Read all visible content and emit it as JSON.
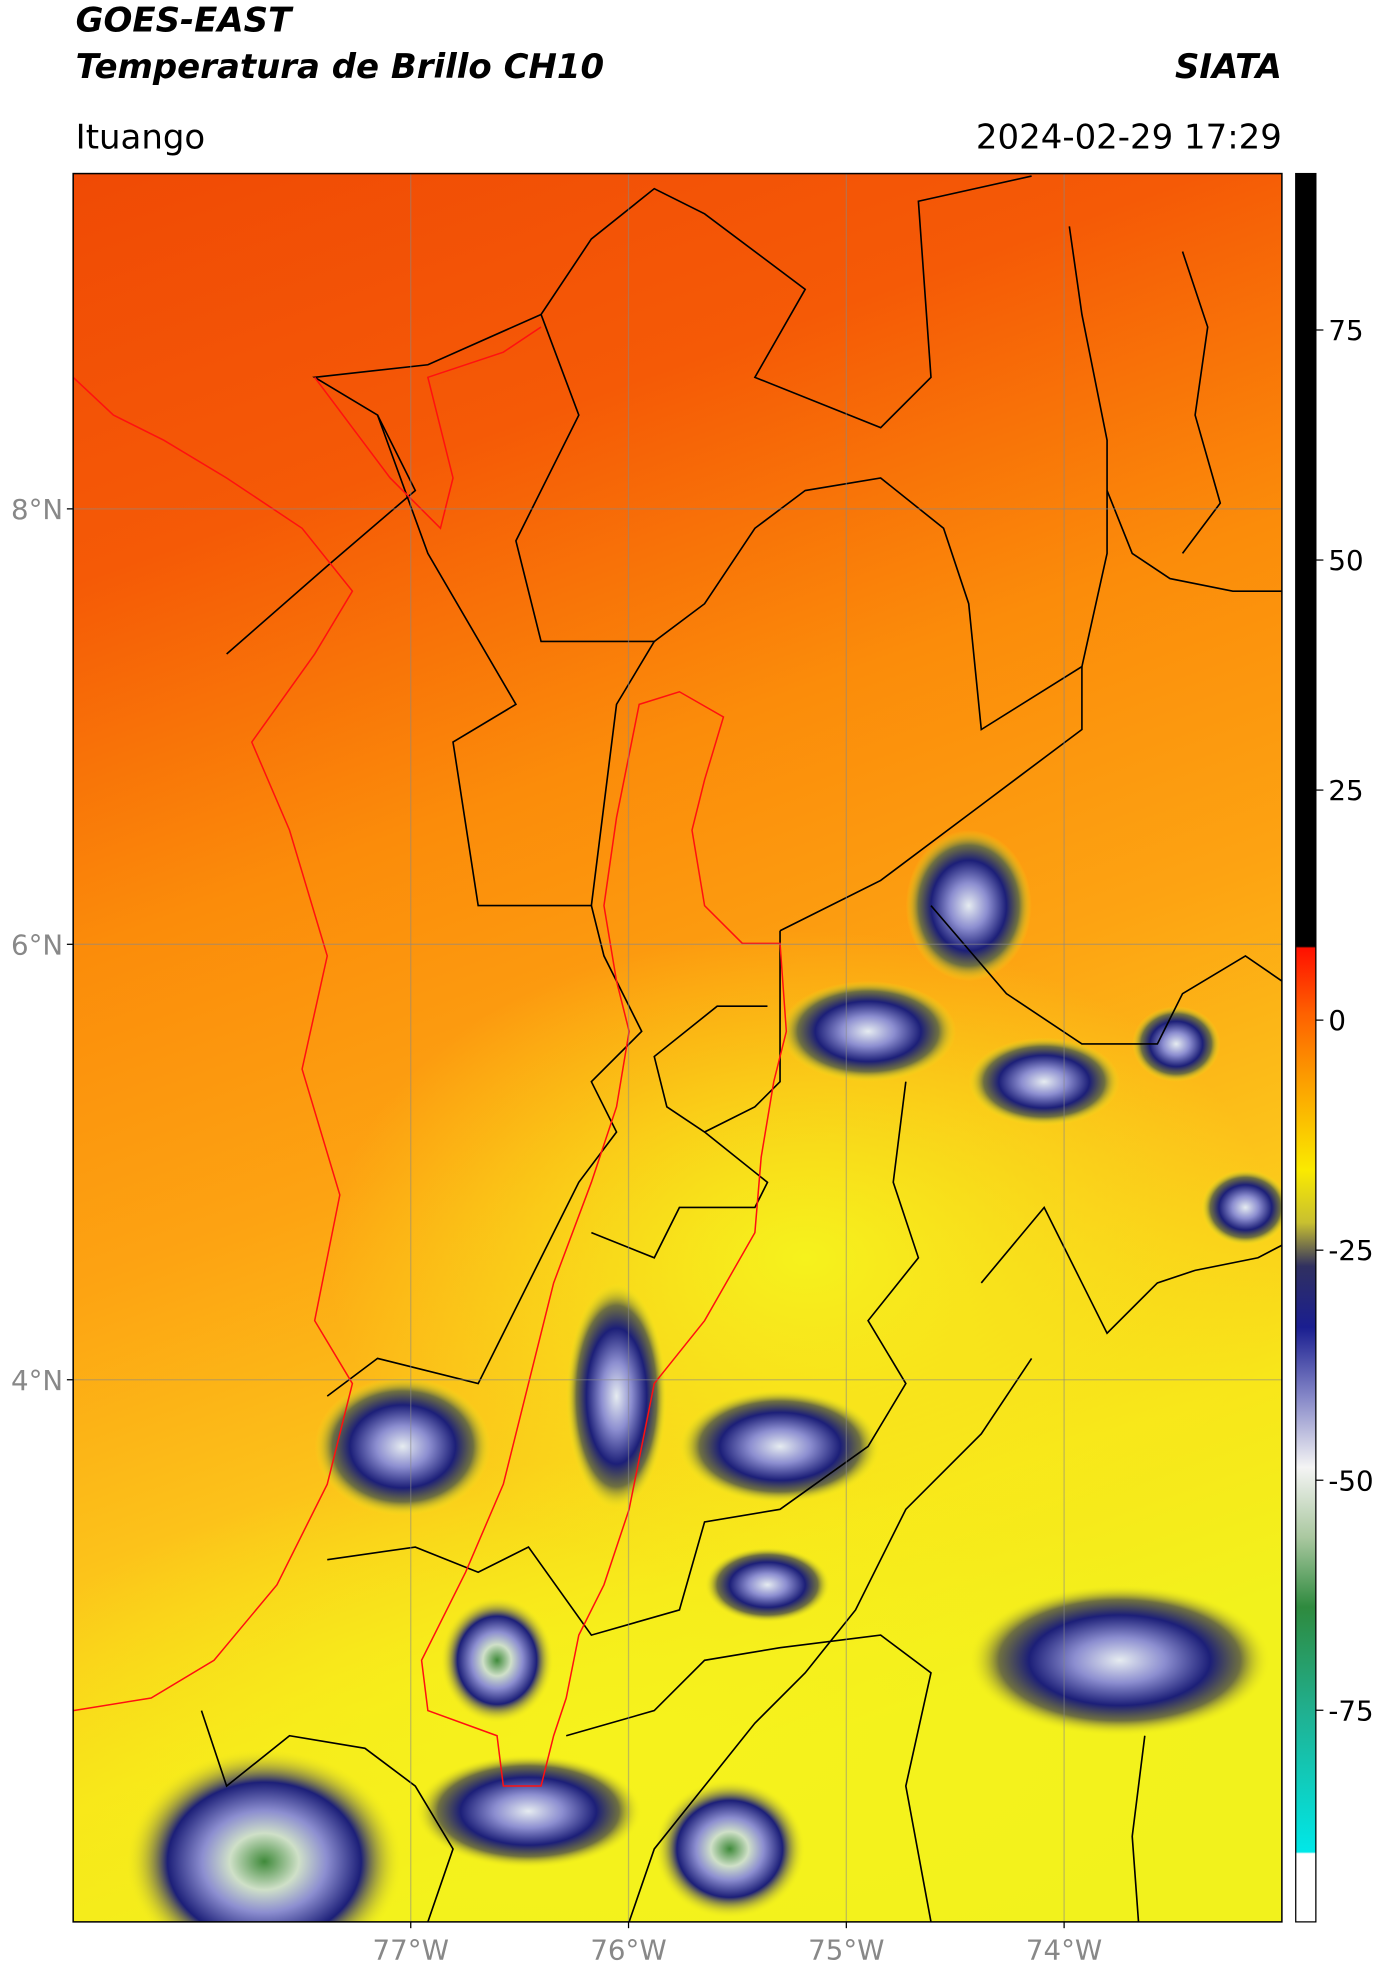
{
  "header": {
    "title": "GOES-EAST",
    "subtitle": "Temperatura de Brillo CH10",
    "source": "SIATA",
    "region": "Ituango",
    "timestamp": "2024-02-29 17:29"
  },
  "map": {
    "lonlim": [
      -78.55,
      -73.0
    ],
    "latlim": [
      1.51,
      9.54
    ],
    "lat_ticks": [
      {
        "value": 8,
        "label": "8°N"
      },
      {
        "value": 6,
        "label": "6°N"
      },
      {
        "value": 4,
        "label": "4°N"
      }
    ],
    "lon_ticks": [
      {
        "value": -77,
        "label": "77°W"
      },
      {
        "value": -76,
        "label": "76°W"
      },
      {
        "value": -75,
        "label": "75°W"
      },
      {
        "value": -74,
        "label": "74°W"
      }
    ],
    "grid": true
  },
  "colorbar": {
    "lim": [
      -98,
      92
    ],
    "ticks": [
      75,
      50,
      25,
      0,
      -25,
      -50,
      -75
    ]
  }
}
